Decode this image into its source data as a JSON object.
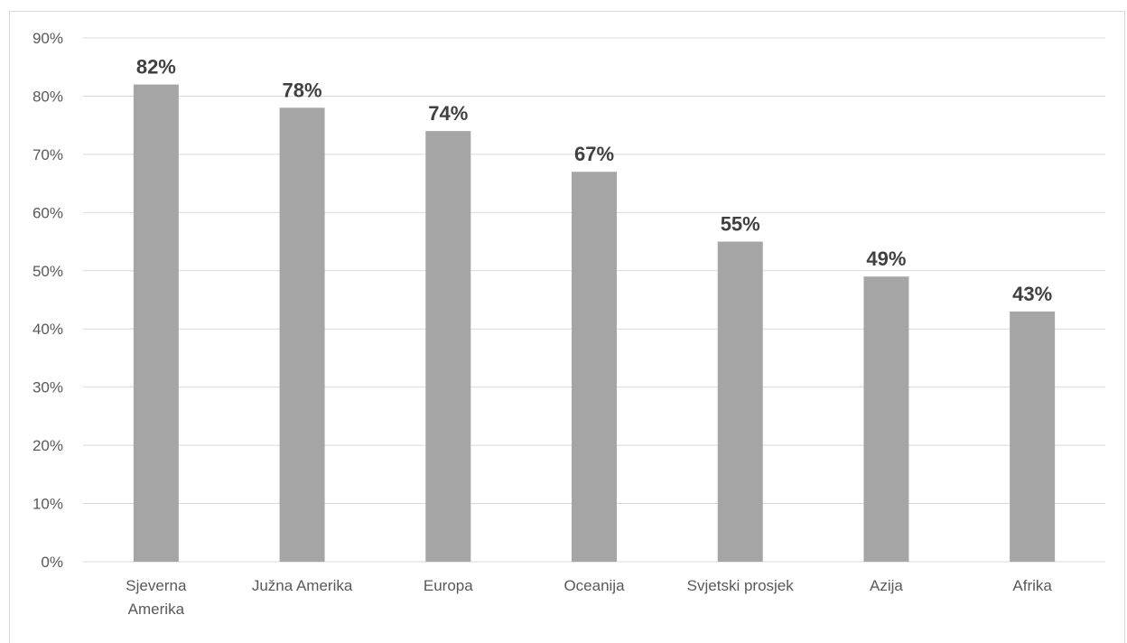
{
  "chart_data": {
    "type": "bar",
    "title": "",
    "xlabel": "",
    "ylabel": "",
    "categories": [
      [
        "Sjeverna",
        "Amerika"
      ],
      [
        "Južna Amerika"
      ],
      [
        "Europa"
      ],
      [
        "Oceanija"
      ],
      [
        "Svjetski prosjek"
      ],
      [
        "Azija"
      ],
      [
        "Afrika"
      ]
    ],
    "values": [
      82,
      78,
      74,
      67,
      55,
      49,
      43
    ],
    "value_labels": [
      "82%",
      "78%",
      "74%",
      "67%",
      "55%",
      "49%",
      "43%"
    ],
    "ylim": [
      0,
      90
    ],
    "yticks": [
      0,
      10,
      20,
      30,
      40,
      50,
      60,
      70,
      80,
      90
    ],
    "ytick_labels": [
      "0%",
      "10%",
      "20%",
      "30%",
      "40%",
      "50%",
      "60%",
      "70%",
      "80%",
      "90%"
    ],
    "grid": true,
    "legend": "none",
    "bar_color": "#a5a5a5",
    "grid_color": "#d9d9d9"
  }
}
